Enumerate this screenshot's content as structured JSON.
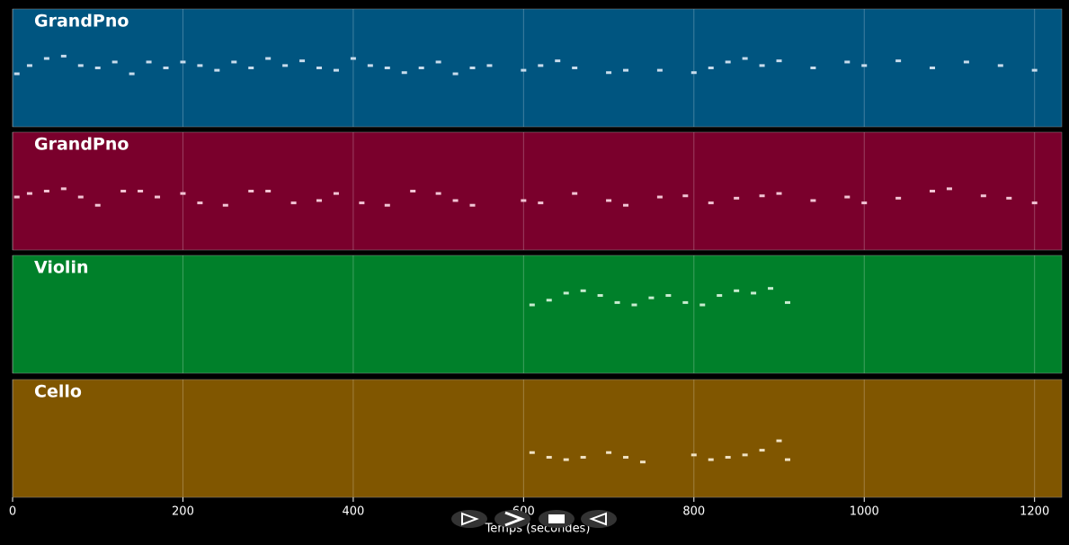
{
  "chart_data": {
    "type": "scatter",
    "xlabel": "Temps (secondes)",
    "xlim": [
      0,
      1232
    ],
    "xticks": [
      0,
      200,
      400,
      600,
      800,
      1000,
      1200
    ],
    "ylim": [
      0,
      100
    ],
    "grid": true,
    "series": [
      {
        "name": "GrandPno",
        "color": "#005580",
        "note_color": "#c8dcec",
        "x": [
          5,
          20,
          40,
          60,
          80,
          100,
          120,
          140,
          160,
          180,
          200,
          220,
          240,
          260,
          280,
          300,
          320,
          340,
          360,
          380,
          400,
          420,
          440,
          460,
          480,
          500,
          520,
          540,
          560,
          600,
          620,
          640,
          660,
          700,
          720,
          760,
          800,
          820,
          840,
          860,
          880,
          900,
          940,
          980,
          1000,
          1040,
          1080,
          1120,
          1160,
          1200
        ],
        "values": [
          45,
          52,
          58,
          60,
          52,
          50,
          55,
          45,
          55,
          50,
          55,
          52,
          48,
          55,
          50,
          58,
          52,
          56,
          50,
          48,
          58,
          52,
          50,
          46,
          50,
          55,
          45,
          50,
          52,
          48,
          52,
          56,
          50,
          46,
          48,
          48,
          46,
          50,
          55,
          58,
          52,
          56,
          50,
          55,
          52,
          56,
          50,
          55,
          52,
          48
        ]
      },
      {
        "name": "GrandPno",
        "color": "#7a002c",
        "note_color": "#f2c4d4",
        "x": [
          5,
          20,
          40,
          60,
          80,
          100,
          130,
          150,
          170,
          200,
          220,
          250,
          280,
          300,
          330,
          360,
          380,
          410,
          440,
          470,
          500,
          520,
          540,
          600,
          620,
          660,
          700,
          720,
          760,
          790,
          820,
          850,
          880,
          900,
          940,
          980,
          1000,
          1040,
          1080,
          1100,
          1140,
          1170,
          1200
        ],
        "values": [
          45,
          48,
          50,
          52,
          45,
          38,
          50,
          50,
          45,
          48,
          40,
          38,
          50,
          50,
          40,
          42,
          48,
          40,
          38,
          50,
          48,
          42,
          38,
          42,
          40,
          48,
          42,
          38,
          45,
          46,
          40,
          44,
          46,
          48,
          42,
          45,
          40,
          44,
          50,
          52,
          46,
          44,
          40
        ]
      },
      {
        "name": "Violin",
        "color": "#00802a",
        "note_color": "#c8ecd0",
        "x": [
          610,
          630,
          650,
          670,
          690,
          710,
          730,
          750,
          770,
          790,
          810,
          830,
          850,
          870,
          890,
          910
        ],
        "values": [
          58,
          62,
          68,
          70,
          66,
          60,
          58,
          64,
          66,
          60,
          58,
          66,
          70,
          68,
          72,
          60
        ]
      },
      {
        "name": "Cello",
        "color": "#805600",
        "note_color": "#f0e2c4",
        "x": [
          610,
          630,
          650,
          670,
          700,
          720,
          740,
          800,
          820,
          840,
          860,
          880,
          900,
          910
        ],
        "values": [
          38,
          34,
          32,
          34,
          38,
          34,
          30,
          36,
          32,
          34,
          36,
          40,
          48,
          32
        ]
      }
    ]
  }
}
